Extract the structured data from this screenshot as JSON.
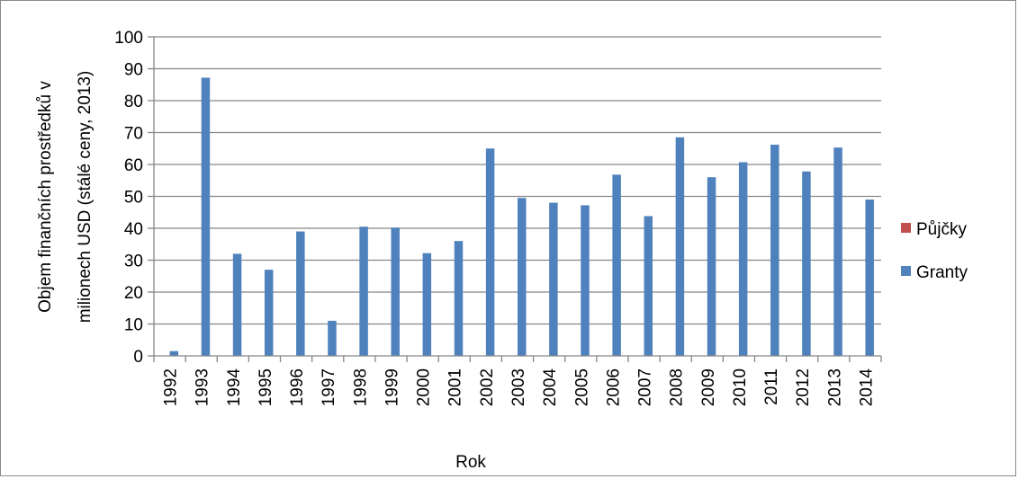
{
  "chart_data": {
    "type": "bar",
    "categories": [
      "1992",
      "1993",
      "1994",
      "1995",
      "1996",
      "1997",
      "1998",
      "1999",
      "2000",
      "2001",
      "2002",
      "2003",
      "2004",
      "2005",
      "2006",
      "2007",
      "2008",
      "2009",
      "2010",
      "2011",
      "2012",
      "2013",
      "2014"
    ],
    "series": [
      {
        "name": "Půjčky",
        "color": "#c0504d",
        "values": [
          0,
          0,
          0,
          0,
          0,
          0,
          0,
          0,
          0,
          0,
          0,
          0,
          0,
          0,
          0,
          0,
          0,
          0,
          0,
          0,
          0,
          0,
          0
        ]
      },
      {
        "name": "Granty",
        "color": "#4f81bd",
        "values": [
          1.5,
          87.2,
          32,
          27,
          39,
          11,
          40.5,
          40.2,
          32.2,
          36,
          65,
          49.5,
          48,
          47.2,
          56.8,
          43.8,
          68.5,
          56,
          60.7,
          66.2,
          57.8,
          65.3,
          49
        ]
      }
    ],
    "xlabel": "Rok",
    "ylabel_lines": [
      "Objem finančních prostředků v",
      "milionech USD (stálé ceny, 2013)"
    ],
    "ylim": [
      0,
      100
    ],
    "yticks": [
      0,
      10,
      20,
      30,
      40,
      50,
      60,
      70,
      80,
      90,
      100
    ],
    "grid": true,
    "legend_position": "right",
    "legend": [
      {
        "label": "Půjčky",
        "color": "#c0504d"
      },
      {
        "label": "Granty",
        "color": "#4f81bd"
      }
    ]
  }
}
